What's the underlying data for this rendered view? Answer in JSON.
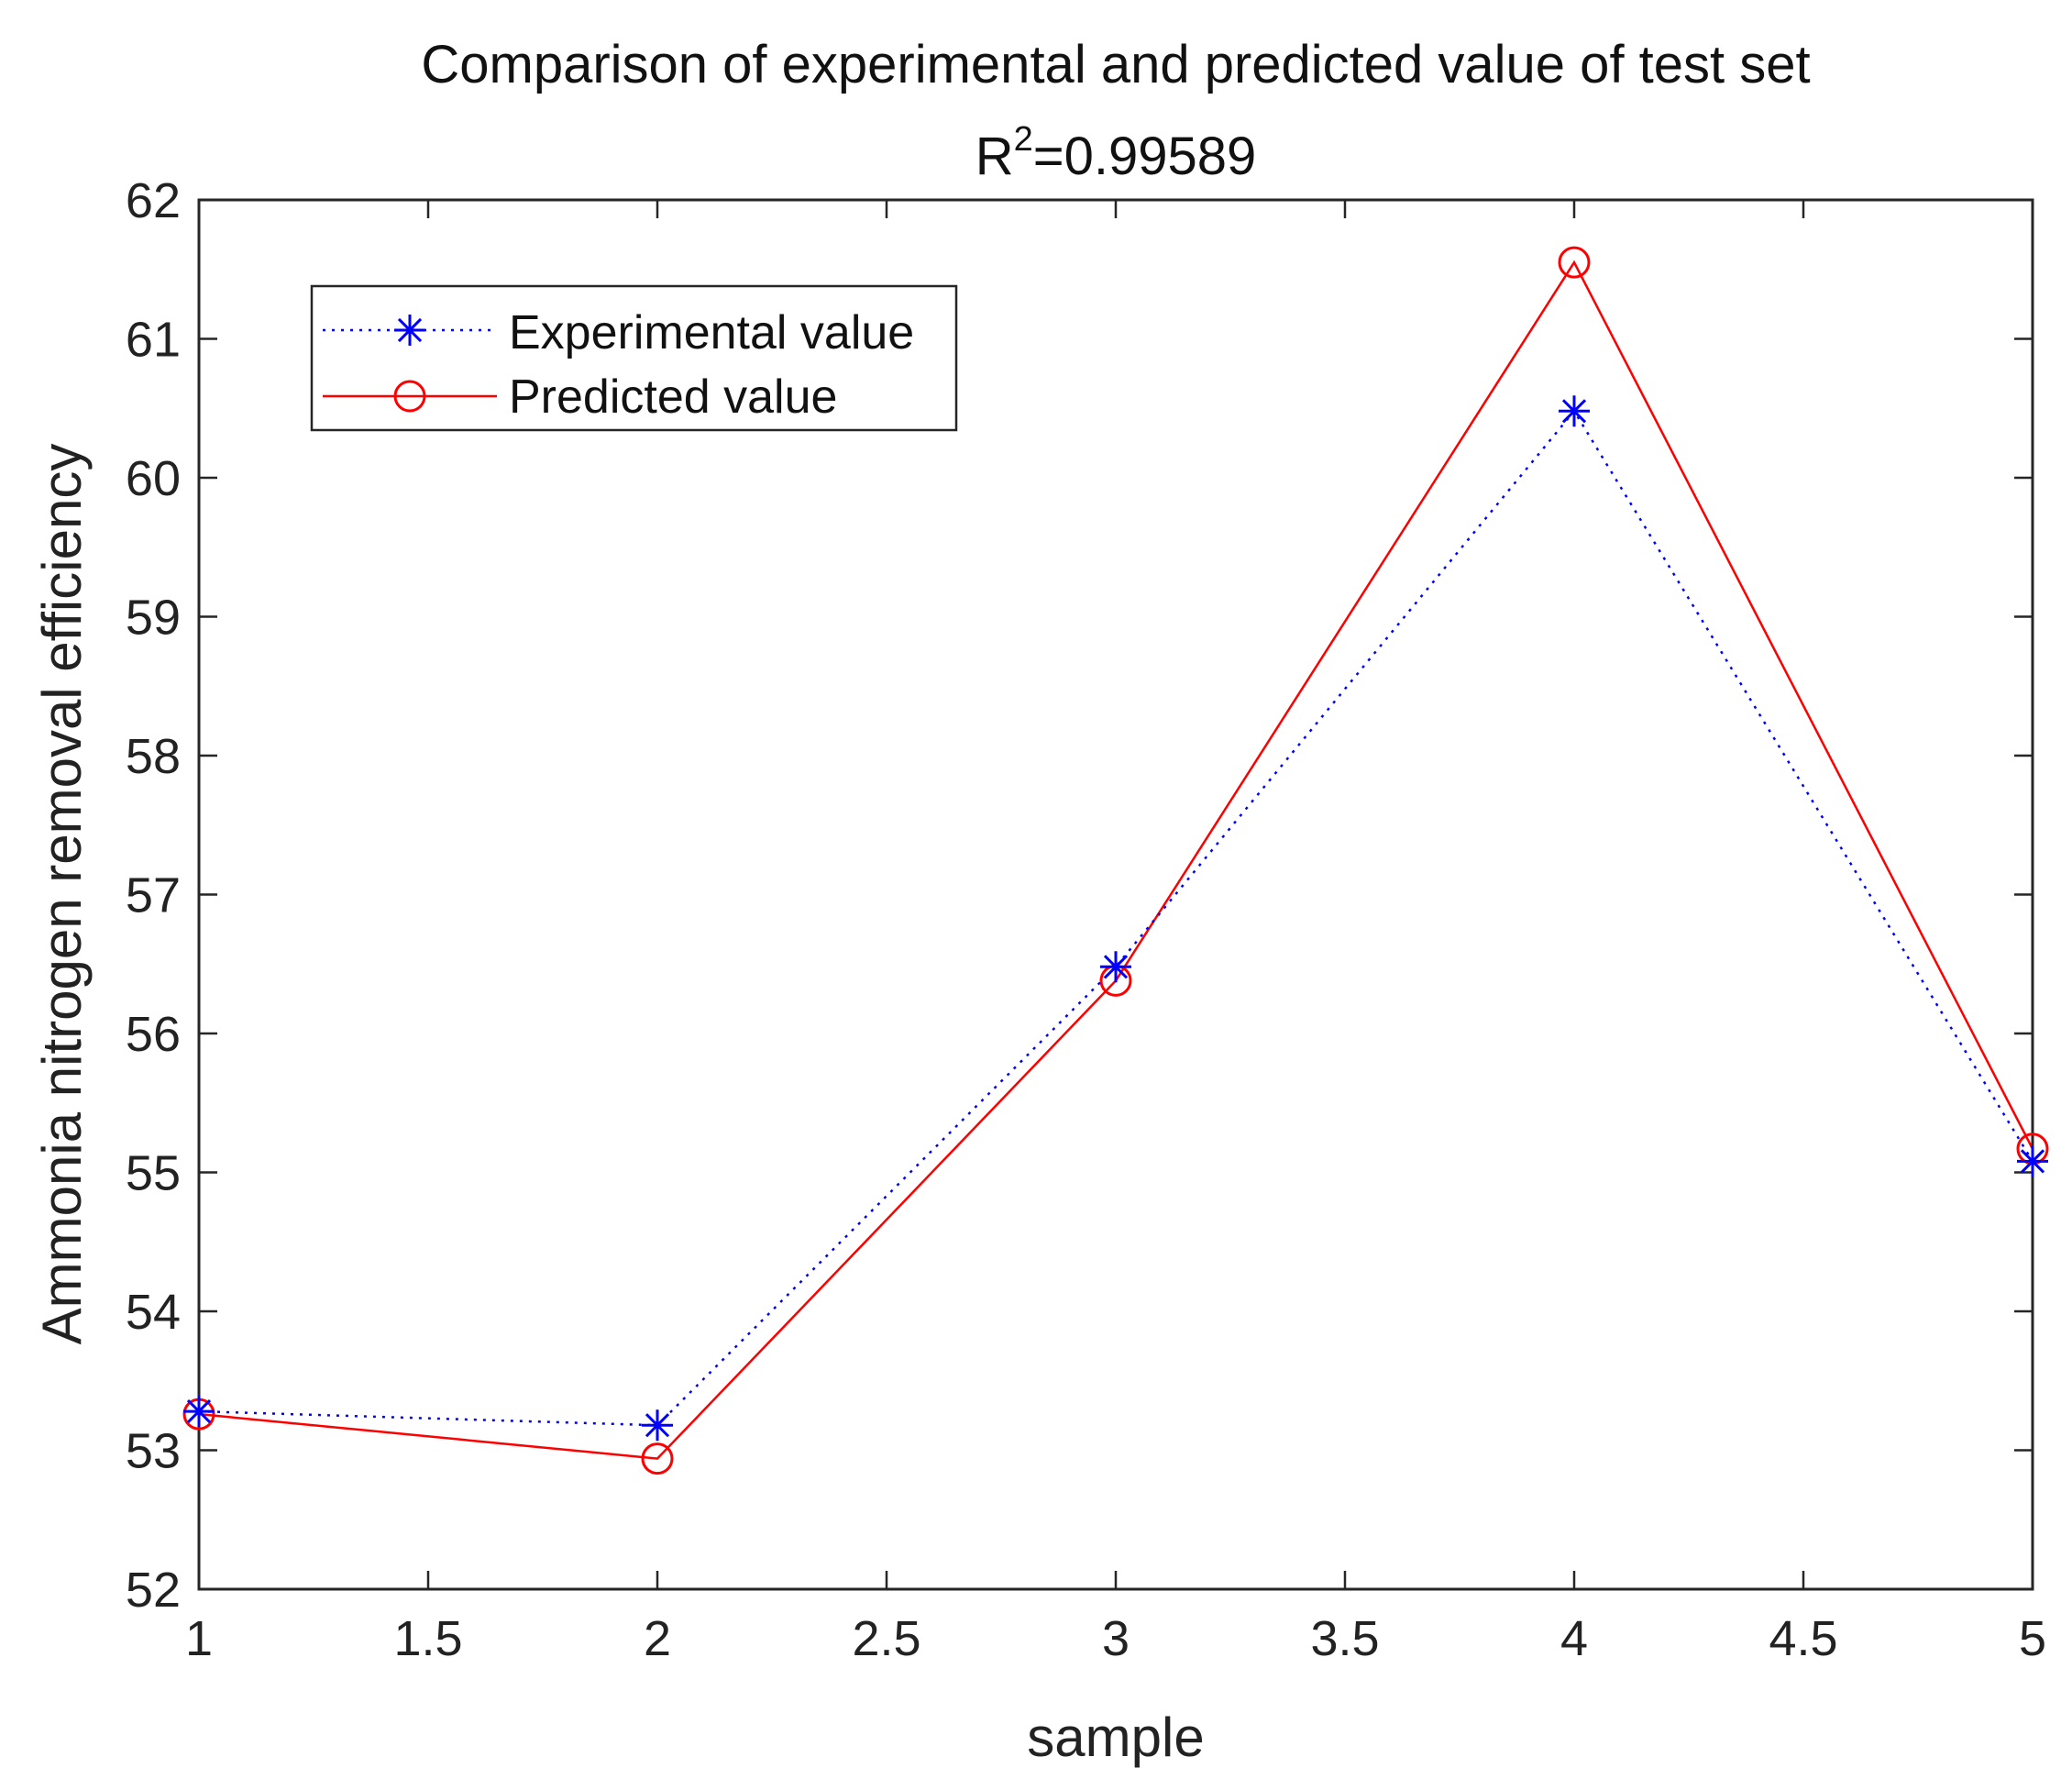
{
  "chart_data": {
    "type": "line",
    "title": "Comparison of experimental and predicted value of test set",
    "subtitle_prefix": "R",
    "subtitle_superscript": "2",
    "subtitle_value": "=0.99589",
    "xlabel": "sample",
    "ylabel": "Ammonia nitrogen removal efficiency",
    "xlim": [
      1,
      5
    ],
    "ylim": [
      52,
      62
    ],
    "xticks": [
      1,
      1.5,
      2,
      2.5,
      3,
      3.5,
      4,
      4.5,
      5
    ],
    "xtick_labels": [
      "1",
      "1.5",
      "2",
      "2.5",
      "3",
      "3.5",
      "4",
      "4.5",
      "5"
    ],
    "yticks": [
      52,
      53,
      54,
      55,
      56,
      57,
      58,
      59,
      60,
      61,
      62
    ],
    "ytick_labels": [
      "52",
      "53",
      "54",
      "55",
      "56",
      "57",
      "58",
      "59",
      "60",
      "61",
      "62"
    ],
    "x": [
      1,
      2,
      3,
      4,
      5
    ],
    "grid": false,
    "legend_position": "top-left",
    "series": [
      {
        "name": "Experimental value",
        "values": [
          53.28,
          53.18,
          56.48,
          60.48,
          55.08
        ],
        "color": "#0000ff",
        "line_style": "dotted",
        "marker": "asterisk"
      },
      {
        "name": "Predicted value",
        "values": [
          53.26,
          52.94,
          56.38,
          61.55,
          55.17
        ],
        "color": "#ff0000",
        "line_style": "solid",
        "marker": "circle"
      }
    ]
  }
}
